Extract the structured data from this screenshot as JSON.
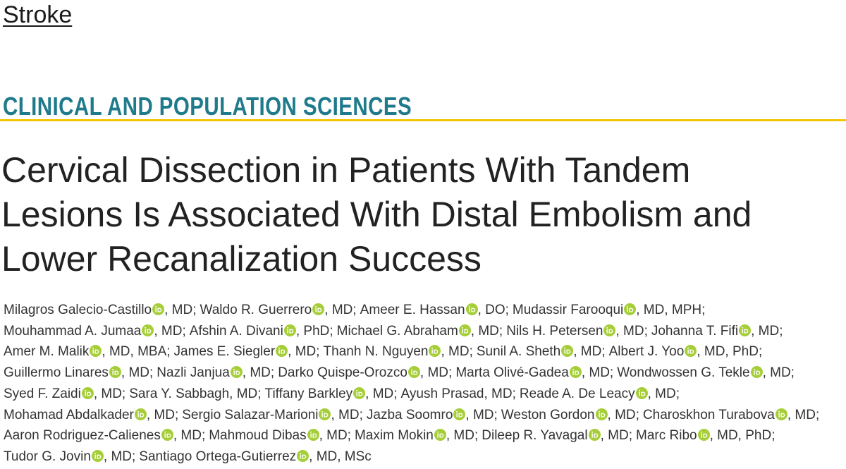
{
  "journal": "Stroke",
  "section": "CLINICAL AND POPULATION SCIENCES",
  "title": [
    "Cervical Dissection in Patients With Tandem",
    "Lesions Is Associated With Distal Embolism and",
    "Lower Recanalization Success"
  ],
  "author_lines": [
    [
      {
        "name": "Milagros Galecio-Castillo",
        "orcid": true,
        "credentials": ", MD;"
      },
      {
        "name": "Waldo R. Guerrero",
        "orcid": true,
        "credentials": ", MD;"
      },
      {
        "name": "Ameer E. Hassan",
        "orcid": true,
        "credentials": ", DO;"
      },
      {
        "name": "Mudassir Farooqui",
        "orcid": true,
        "credentials": ", MD, MPH;"
      }
    ],
    [
      {
        "name": "Mouhammad A. Jumaa",
        "orcid": true,
        "credentials": ", MD;"
      },
      {
        "name": "Afshin A. Divani",
        "orcid": true,
        "credentials": ", PhD;"
      },
      {
        "name": "Michael G. Abraham",
        "orcid": true,
        "credentials": ", MD;"
      },
      {
        "name": "Nils H. Petersen",
        "orcid": true,
        "credentials": ", MD;"
      },
      {
        "name": "Johanna T. Fifi",
        "orcid": true,
        "credentials": ", MD;"
      }
    ],
    [
      {
        "name": "Amer M. Malik",
        "orcid": true,
        "credentials": ", MD, MBA;"
      },
      {
        "name": "James E. Siegler",
        "orcid": true,
        "credentials": ", MD;"
      },
      {
        "name": "Thanh N. Nguyen",
        "orcid": true,
        "credentials": ", MD;"
      },
      {
        "name": "Sunil A. Sheth",
        "orcid": true,
        "credentials": ", MD;"
      },
      {
        "name": "Albert J. Yoo",
        "orcid": true,
        "credentials": ", MD, PhD;"
      }
    ],
    [
      {
        "name": "Guillermo Linares",
        "orcid": true,
        "credentials": ", MD;"
      },
      {
        "name": "Nazli Janjua",
        "orcid": true,
        "credentials": ", MD;"
      },
      {
        "name": "Darko Quispe-Orozco",
        "orcid": true,
        "credentials": ", MD;"
      },
      {
        "name": "Marta Olivé-Gadea",
        "orcid": true,
        "credentials": ", MD;"
      },
      {
        "name": "Wondwossen G. Tekle",
        "orcid": true,
        "credentials": ", MD;"
      }
    ],
    [
      {
        "name": "Syed F. Zaidi",
        "orcid": true,
        "credentials": ", MD;"
      },
      {
        "name": "Sara Y. Sabbagh",
        "orcid": false,
        "credentials": ", MD;"
      },
      {
        "name": "Tiffany Barkley",
        "orcid": true,
        "credentials": ", MD;"
      },
      {
        "name": "Ayush Prasad",
        "orcid": false,
        "credentials": ", MD;"
      },
      {
        "name": "Reade A. De Leacy",
        "orcid": true,
        "credentials": ", MD;"
      }
    ],
    [
      {
        "name": "Mohamad Abdalkader",
        "orcid": true,
        "credentials": ", MD;"
      },
      {
        "name": "Sergio Salazar-Marioni",
        "orcid": true,
        "credentials": ", MD;"
      },
      {
        "name": "Jazba Soomro",
        "orcid": true,
        "credentials": ", MD;"
      },
      {
        "name": "Weston Gordon",
        "orcid": true,
        "credentials": ", MD;"
      },
      {
        "name": "Charoskhon Turabova",
        "orcid": true,
        "credentials": ", MD;"
      }
    ],
    [
      {
        "name": "Aaron Rodriguez-Calienes",
        "orcid": true,
        "credentials": ", MD;"
      },
      {
        "name": "Mahmoud Dibas",
        "orcid": true,
        "credentials": ", MD;"
      },
      {
        "name": "Maxim Mokin",
        "orcid": true,
        "credentials": ", MD;"
      },
      {
        "name": "Dileep R. Yavagal",
        "orcid": true,
        "credentials": ", MD;"
      },
      {
        "name": "Marc Ribo",
        "orcid": true,
        "credentials": ", MD, PhD;"
      }
    ],
    [
      {
        "name": "Tudor G. Jovin",
        "orcid": true,
        "credentials": ", MD;"
      },
      {
        "name": "Santiago Ortega-Gutierrez",
        "orcid": true,
        "credentials": ", MD, MSc"
      }
    ]
  ]
}
